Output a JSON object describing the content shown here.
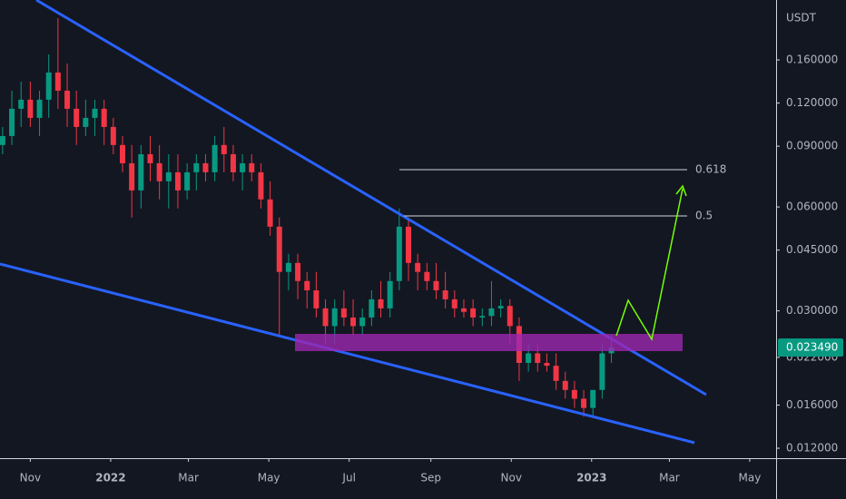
{
  "chart_data": {
    "type": "candlestick",
    "y_unit": "USDT",
    "log_scale": true,
    "grid": false,
    "up_color": "#089981",
    "down_color": "#f23645",
    "x": [
      "2021-10-11",
      "2021-10-18",
      "2021-10-25",
      "2021-11-01",
      "2021-11-08",
      "2021-11-15",
      "2021-11-22",
      "2021-11-29",
      "2021-12-06",
      "2021-12-13",
      "2021-12-20",
      "2021-12-27",
      "2022-01-03",
      "2022-01-10",
      "2022-01-17",
      "2022-01-24",
      "2022-01-31",
      "2022-02-07",
      "2022-02-14",
      "2022-02-21",
      "2022-02-28",
      "2022-03-07",
      "2022-03-14",
      "2022-03-21",
      "2022-03-28",
      "2022-04-04",
      "2022-04-11",
      "2022-04-18",
      "2022-04-25",
      "2022-05-02",
      "2022-05-09",
      "2022-05-16",
      "2022-05-23",
      "2022-05-30",
      "2022-06-06",
      "2022-06-13",
      "2022-06-20",
      "2022-06-27",
      "2022-07-04",
      "2022-07-11",
      "2022-07-18",
      "2022-07-25",
      "2022-08-01",
      "2022-08-08",
      "2022-08-15",
      "2022-08-22",
      "2022-08-29",
      "2022-09-05",
      "2022-09-12",
      "2022-09-19",
      "2022-09-26",
      "2022-10-03",
      "2022-10-10",
      "2022-10-17",
      "2022-10-24",
      "2022-10-31",
      "2022-11-07",
      "2022-11-14",
      "2022-11-21",
      "2022-11-28",
      "2022-12-05",
      "2022-12-12",
      "2022-12-19",
      "2022-12-26",
      "2023-01-02",
      "2023-01-09",
      "2023-01-16"
    ],
    "open": [
      0.0907,
      0.0963,
      0.1155,
      0.1227,
      0.1087,
      0.1227,
      0.1471,
      0.1303,
      0.1155,
      0.1023,
      0.1087,
      0.1155,
      0.1023,
      0.0907,
      0.0803,
      0.067,
      0.0853,
      0.0803,
      0.0712,
      0.0756,
      0.067,
      0.0756,
      0.0803,
      0.0756,
      0.0907,
      0.0853,
      0.0756,
      0.0803,
      0.0756,
      0.0631,
      0.0526,
      0.0389,
      0.0413,
      0.0366,
      0.0344,
      0.0305,
      0.0271,
      0.0305,
      0.0287,
      0.0271,
      0.0287,
      0.0324,
      0.0305,
      0.0366,
      0.0526,
      0.0413,
      0.0389,
      0.0366,
      0.0344,
      0.0324,
      0.0305,
      0.0305,
      0.0287,
      0.029,
      0.0305,
      0.031,
      0.0271,
      0.0212,
      0.0226,
      0.0212,
      0.0208,
      0.0188,
      0.0177,
      0.0167,
      0.0157,
      0.0177,
      0.0226
    ],
    "high": [
      0.1023,
      0.1303,
      0.1384,
      0.1384,
      0.1303,
      0.166,
      0.2114,
      0.1562,
      0.1303,
      0.1227,
      0.1227,
      0.1227,
      0.1087,
      0.0963,
      0.0907,
      0.0907,
      0.0963,
      0.0907,
      0.0853,
      0.0853,
      0.0803,
      0.0853,
      0.0853,
      0.0963,
      0.1023,
      0.0907,
      0.0853,
      0.0853,
      0.0803,
      0.0712,
      0.0559,
      0.0439,
      0.0439,
      0.0389,
      0.0389,
      0.0324,
      0.0324,
      0.0344,
      0.0324,
      0.0305,
      0.0344,
      0.0366,
      0.0389,
      0.0594,
      0.0559,
      0.0439,
      0.0413,
      0.0413,
      0.0389,
      0.0344,
      0.0324,
      0.0324,
      0.0305,
      0.0366,
      0.0324,
      0.0324,
      0.0287,
      0.024,
      0.024,
      0.0226,
      0.0226,
      0.02,
      0.0188,
      0.0177,
      0.0177,
      0.024,
      0.0255
    ],
    "low": [
      0.0853,
      0.0907,
      0.1023,
      0.1023,
      0.0963,
      0.1087,
      0.1155,
      0.1023,
      0.0907,
      0.0963,
      0.0963,
      0.0907,
      0.0853,
      0.0756,
      0.0559,
      0.0594,
      0.0712,
      0.0631,
      0.0594,
      0.0594,
      0.0631,
      0.067,
      0.0712,
      0.0712,
      0.0756,
      0.0712,
      0.067,
      0.0712,
      0.0594,
      0.0495,
      0.0255,
      0.0344,
      0.0324,
      0.0305,
      0.0287,
      0.024,
      0.024,
      0.0271,
      0.0255,
      0.0255,
      0.0271,
      0.0287,
      0.0287,
      0.0344,
      0.0366,
      0.0344,
      0.0344,
      0.0324,
      0.0305,
      0.0287,
      0.0287,
      0.0271,
      0.0271,
      0.0271,
      0.0287,
      0.024,
      0.0188,
      0.02,
      0.02,
      0.02,
      0.0177,
      0.0167,
      0.0157,
      0.0148,
      0.0148,
      0.0167,
      0.0212
    ],
    "close": [
      0.0963,
      0.1155,
      0.1227,
      0.1087,
      0.1227,
      0.1471,
      0.1303,
      0.1155,
      0.1023,
      0.1087,
      0.1155,
      0.1023,
      0.0907,
      0.0803,
      0.067,
      0.0853,
      0.0803,
      0.0712,
      0.0756,
      0.067,
      0.0756,
      0.0803,
      0.0756,
      0.0907,
      0.0853,
      0.0756,
      0.0803,
      0.0756,
      0.0631,
      0.0526,
      0.0389,
      0.0413,
      0.0366,
      0.0344,
      0.0305,
      0.0271,
      0.0305,
      0.0287,
      0.0271,
      0.0287,
      0.0324,
      0.0305,
      0.0366,
      0.0526,
      0.0413,
      0.0389,
      0.0366,
      0.0344,
      0.0324,
      0.0305,
      0.0298,
      0.0287,
      0.029,
      0.0305,
      0.031,
      0.0271,
      0.0212,
      0.0226,
      0.0212,
      0.0208,
      0.0188,
      0.0177,
      0.0167,
      0.0157,
      0.0177,
      0.0226,
      0.02349
    ],
    "last_price": 0.02349,
    "last_price_label": "0.023490",
    "ylim": [
      0.01123,
      0.2386
    ],
    "yticks": [
      {
        "value": 0.012,
        "label": "0.012000"
      },
      {
        "value": 0.016,
        "label": "0.016000"
      },
      {
        "value": 0.022,
        "label": "0.022000"
      },
      {
        "value": 0.03,
        "label": "0.030000"
      },
      {
        "value": 0.045,
        "label": "0.045000"
      },
      {
        "value": 0.06,
        "label": "0.060000"
      },
      {
        "value": 0.09,
        "label": "0.090000"
      },
      {
        "value": 0.12,
        "label": "0.120000"
      },
      {
        "value": 0.16,
        "label": "0.160000"
      }
    ],
    "xlim": [
      "2021-10-09",
      "2023-05-21"
    ],
    "xticks": [
      {
        "value": "2021-11",
        "label": "Nov"
      },
      {
        "value": "2022-01",
        "label": "2022"
      },
      {
        "value": "2022-03",
        "label": "Mar"
      },
      {
        "value": "2022-05",
        "label": "May"
      },
      {
        "value": "2022-07",
        "label": "Jul"
      },
      {
        "value": "2022-09",
        "label": "Sep"
      },
      {
        "value": "2022-11",
        "label": "Nov"
      },
      {
        "value": "2023-01",
        "label": "2023"
      },
      {
        "value": "2023-03",
        "label": "Mar"
      },
      {
        "value": "2023-05",
        "label": "May"
      }
    ],
    "annotations": [
      {
        "text": "0.618"
      },
      {
        "text": "0.5"
      }
    ]
  }
}
